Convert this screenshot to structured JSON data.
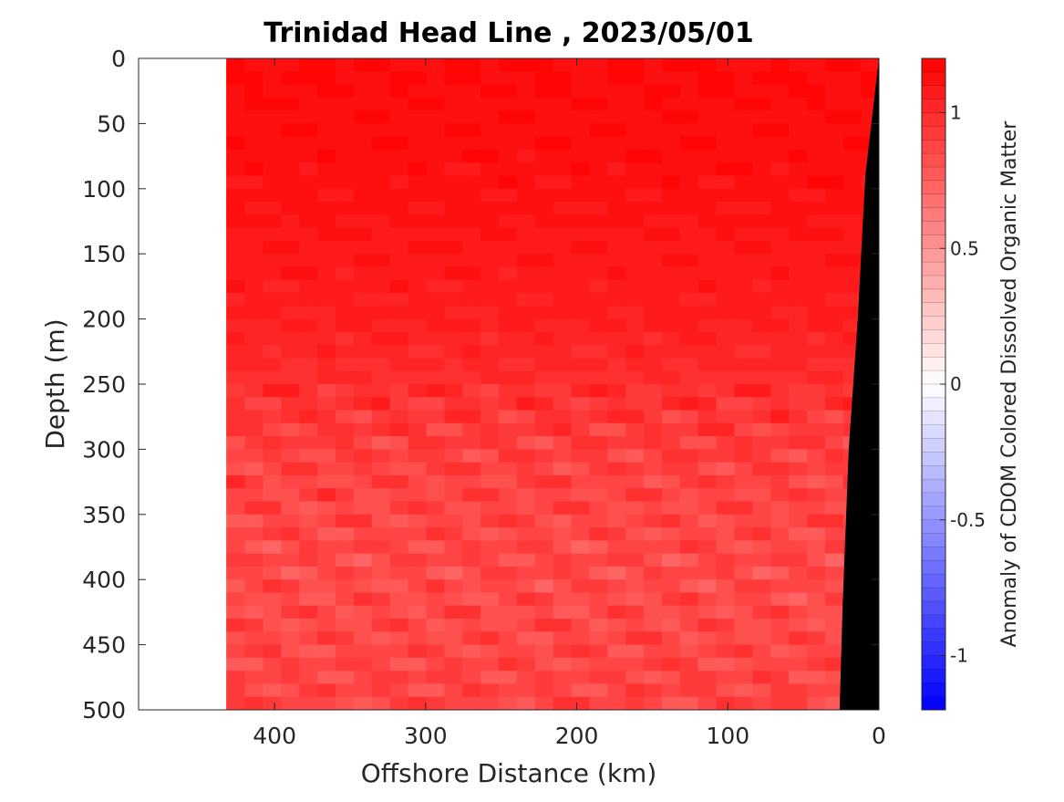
{
  "chart_data": {
    "type": "heatmap",
    "title": "Trinidad Head Line , 2023/05/01",
    "xlabel": "Offshore Distance (km)",
    "ylabel": "Depth (m)",
    "x_reversed": true,
    "y_reversed": true,
    "xlim": [
      0,
      490
    ],
    "ylim": [
      0,
      500
    ],
    "x_ticks": [
      400,
      300,
      200,
      100,
      0
    ],
    "x_tick_labels": [
      "400",
      "300",
      "200",
      "100",
      "0"
    ],
    "y_ticks": [
      0,
      50,
      100,
      150,
      200,
      250,
      300,
      350,
      400,
      450,
      500
    ],
    "y_tick_labels": [
      "0",
      "50",
      "100",
      "150",
      "200",
      "250",
      "300",
      "350",
      "400",
      "450",
      "500"
    ],
    "data_extent_km": [
      0,
      432
    ],
    "colorbar": {
      "label": "Anomaly of CDOM Colored Dissolved Organic Matter",
      "range": [
        -1.2,
        1.2
      ],
      "levels": 48,
      "ticks": [
        -1,
        -0.5,
        0,
        0.5,
        1
      ],
      "tick_labels": [
        "-1",
        "-0.5",
        "0",
        "0.5",
        "1"
      ],
      "colormap": "blue-white-red",
      "low_color": "#0000ff",
      "mid_color": "#ffffff",
      "high_color": "#ff0000"
    },
    "bathymetry_color": "#000000",
    "bathymetry": [
      {
        "depth": 0,
        "distance_km": 0
      },
      {
        "depth": 50,
        "distance_km": 5
      },
      {
        "depth": 90,
        "distance_km": 9
      },
      {
        "depth": 200,
        "distance_km": 14
      },
      {
        "depth": 300,
        "distance_km": 20
      },
      {
        "depth": 420,
        "distance_km": 24
      },
      {
        "depth": 500,
        "distance_km": 26
      }
    ],
    "profile_by_depth": [
      {
        "depth": 0,
        "anomaly": 1.15
      },
      {
        "depth": 100,
        "anomaly": 1.12
      },
      {
        "depth": 200,
        "anomaly": 1.05
      },
      {
        "depth": 240,
        "anomaly": 1.0
      },
      {
        "depth": 300,
        "anomaly": 0.9
      },
      {
        "depth": 400,
        "anomaly": 0.85
      },
      {
        "depth": 500,
        "anomaly": 0.88
      }
    ]
  }
}
